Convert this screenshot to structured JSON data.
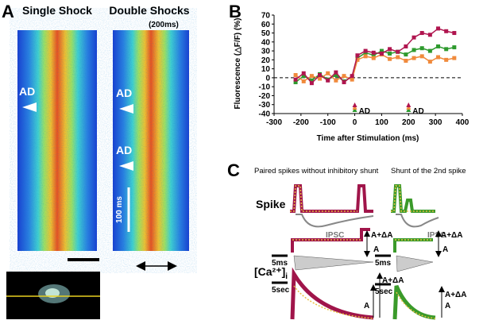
{
  "panel_a": {
    "label": "A",
    "title_left": "Single Shock",
    "title_right": "Double Shocks",
    "subtitle_right": "(200ms)",
    "annotations": [
      "AD",
      "AD",
      "AD"
    ],
    "scale_label": "100 ms"
  },
  "chart_data": {
    "type": "line",
    "panel_label": "B",
    "x_label": "Time after Stimulation (ms)",
    "y_label": "Fluorescence (△F/F) (%)",
    "x": [
      -220,
      -190,
      -160,
      -130,
      -100,
      -70,
      -40,
      -10,
      10,
      40,
      70,
      100,
      130,
      160,
      190,
      220,
      250,
      280,
      310,
      340,
      370
    ],
    "series": [
      {
        "color": "#2e9a2e",
        "values": [
          -5,
          2,
          -3,
          4,
          -2,
          3,
          -4,
          1,
          22,
          28,
          25,
          30,
          27,
          29,
          26,
          31,
          33,
          30,
          35,
          32,
          34
        ]
      },
      {
        "color": "#f08a3c",
        "values": [
          3,
          -4,
          2,
          -1,
          5,
          -3,
          2,
          -2,
          20,
          24,
          22,
          26,
          21,
          23,
          19,
          22,
          24,
          18,
          23,
          20,
          22
        ]
      },
      {
        "color": "#b0154f",
        "values": [
          -2,
          5,
          -6,
          3,
          -3,
          6,
          -5,
          2,
          25,
          30,
          28,
          27,
          32,
          29,
          35,
          45,
          50,
          48,
          55,
          52,
          50
        ]
      }
    ],
    "xlim": [
      -300,
      400
    ],
    "xticks": [
      -300,
      -200,
      -100,
      0,
      100,
      200,
      300,
      400
    ],
    "ylim": [
      -40,
      70
    ],
    "yticks": [
      -40,
      -30,
      -20,
      -10,
      0,
      10,
      20,
      30,
      40,
      50,
      60,
      70
    ],
    "annotations": [
      "AD",
      "AD"
    ]
  },
  "panel_c": {
    "label": "C",
    "title_left": "Paired spikes without inhibitory shunt",
    "title_right": "Shunt of the 2nd spike",
    "spike_label": "Spike",
    "ca_label": "[Ca²⁺]",
    "ca_subscript": "i",
    "ipsc_labels": [
      "IPSC",
      "IPSC"
    ],
    "increment_labels": [
      "A+ΔA",
      "A+ΔA",
      "A+ΔA",
      "A+ΔA"
    ],
    "base_labels": [
      "A",
      "A",
      "A",
      "A"
    ],
    "time_labels": [
      "5ms",
      "5ms",
      "5sec",
      "5sec"
    ]
  }
}
